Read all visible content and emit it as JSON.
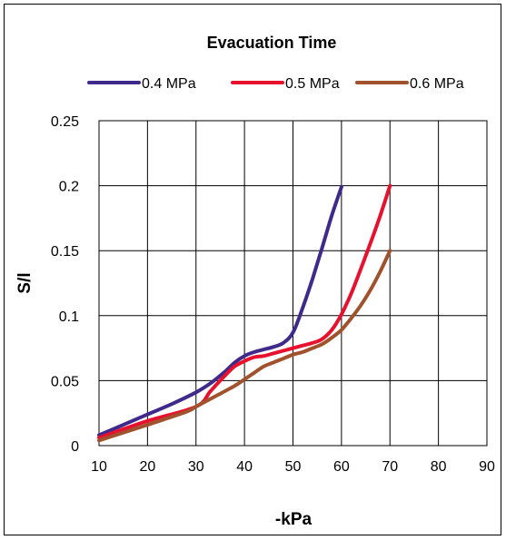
{
  "chart_data": {
    "type": "line",
    "title": "Evacuation Time",
    "xlabel": "-kPa",
    "ylabel": "S/l",
    "xlim": [
      10,
      90
    ],
    "ylim": [
      0,
      0.25
    ],
    "xticks": [
      "10",
      "20",
      "30",
      "40",
      "50",
      "60",
      "70",
      "80",
      "90"
    ],
    "yticks": [
      "0",
      "0.05",
      "0.1",
      "0.15",
      "0.2",
      "0.25"
    ],
    "grid": true,
    "legend_position": "top",
    "series": [
      {
        "name": "0.4 MPa",
        "color": "#3f2a8c",
        "x": [
          10,
          15,
          20,
          25,
          30,
          33,
          36,
          38,
          40,
          42,
          44,
          46,
          48,
          50,
          52,
          54,
          56,
          58,
          60
        ],
        "y": [
          0.008,
          0.016,
          0.024,
          0.032,
          0.041,
          0.048,
          0.057,
          0.064,
          0.069,
          0.072,
          0.074,
          0.076,
          0.079,
          0.087,
          0.106,
          0.128,
          0.152,
          0.177,
          0.199
        ]
      },
      {
        "name": "0.5 MPa",
        "color": "#e8112d",
        "x": [
          10,
          20,
          30,
          33,
          36,
          38,
          40,
          42,
          44,
          46,
          48,
          50,
          52,
          54,
          56,
          58,
          60,
          62,
          64,
          66,
          68,
          70
        ],
        "y": [
          0.006,
          0.019,
          0.03,
          0.042,
          0.054,
          0.061,
          0.065,
          0.068,
          0.069,
          0.071,
          0.073,
          0.075,
          0.077,
          0.079,
          0.082,
          0.089,
          0.101,
          0.117,
          0.136,
          0.156,
          0.177,
          0.2
        ]
      },
      {
        "name": "0.6 MPa",
        "color": "#a0522d",
        "x": [
          10,
          20,
          28,
          30,
          34,
          38,
          40,
          42,
          44,
          46,
          48,
          50,
          52,
          54,
          56,
          58,
          60,
          62,
          64,
          66,
          68,
          70
        ],
        "y": [
          0.004,
          0.016,
          0.026,
          0.03,
          0.038,
          0.046,
          0.051,
          0.056,
          0.061,
          0.064,
          0.067,
          0.07,
          0.072,
          0.075,
          0.078,
          0.083,
          0.089,
          0.098,
          0.108,
          0.12,
          0.134,
          0.15
        ]
      }
    ]
  }
}
